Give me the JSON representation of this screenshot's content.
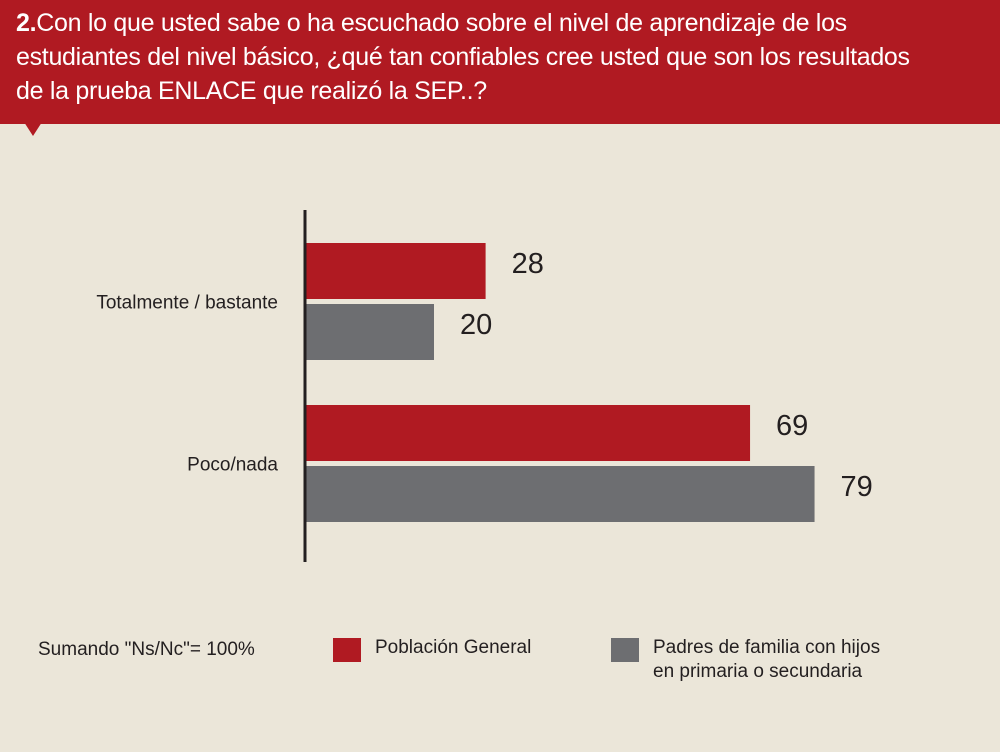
{
  "question": {
    "number": "2.",
    "text_lines": [
      "Con lo que usted sabe o ha escuchado sobre el nivel de aprendizaje de los",
      "estudiantes del nivel básico, ¿qué tan confiables cree usted que son los resultados",
      "de la prueba ENLACE que realizó la SEP..?"
    ]
  },
  "colors": {
    "header_background": "#b01a22",
    "page_background": "#ebe6d9",
    "poblacion_general": "#b01a22",
    "padres_de_familia": "#6d6e71"
  },
  "chart_data": {
    "type": "bar",
    "orientation": "horizontal",
    "categories": [
      "Totalmente / bastante",
      "Poco/nada"
    ],
    "series": [
      {
        "name": "Población General",
        "values": [
          28,
          69
        ],
        "color": "#b01a22"
      },
      {
        "name": "Padres de familia con hijos en primaria o secundaria",
        "values": [
          20,
          79
        ],
        "color": "#6d6e71"
      }
    ],
    "xlim": [
      0,
      100
    ],
    "grid": false,
    "legend": "bottom",
    "data_labels": true
  },
  "footer": {
    "note": "Sumando  \"Ns/Nc\"= 100%",
    "legend": [
      {
        "label_lines": [
          "Población   General"
        ],
        "color": "#b01a22"
      },
      {
        "label_lines": [
          "Padres de familia con hijos",
          "en primaria o secundaria"
        ],
        "color": "#6d6e71"
      }
    ]
  }
}
